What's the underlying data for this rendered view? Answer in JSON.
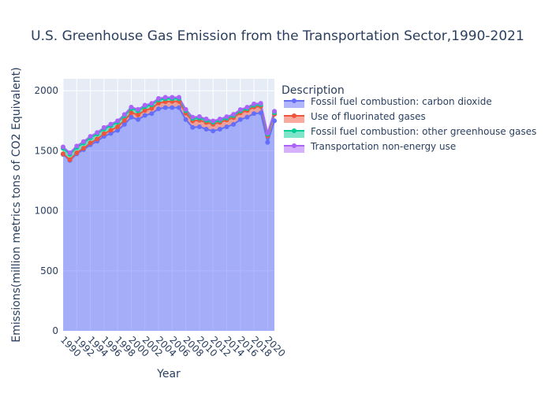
{
  "chart_data": {
    "type": "area",
    "title": "U.S. Greenhouse Gas Emission from the Transportation Sector,1990-2021",
    "xlabel": "Year",
    "ylabel": "Emissions(million metrics tons of CO2 Equivalent)",
    "ylim": [
      0,
      2100
    ],
    "xlim": [
      1990,
      2021
    ],
    "y_ticks": [
      0,
      500,
      1000,
      1500,
      2000
    ],
    "x_ticks": [
      1990,
      1992,
      1994,
      1996,
      1998,
      2000,
      2002,
      2004,
      2006,
      2008,
      2010,
      2012,
      2014,
      2016,
      2018,
      2020
    ],
    "grid": true,
    "stacked": true,
    "legend": {
      "title": "Description",
      "position": "right"
    },
    "x": [
      1990,
      1991,
      1992,
      1993,
      1994,
      1995,
      1996,
      1997,
      1998,
      1999,
      2000,
      2001,
      2002,
      2003,
      2004,
      2005,
      2006,
      2007,
      2008,
      2009,
      2010,
      2011,
      2012,
      2013,
      2014,
      2015,
      2016,
      2017,
      2018,
      2019,
      2020,
      2021
    ],
    "series": [
      {
        "name": "Fossil fuel combustion: carbon dioxide",
        "color": "#636efa",
        "values": [
          1470,
          1420,
          1475,
          1510,
          1550,
          1580,
          1620,
          1645,
          1670,
          1720,
          1780,
          1760,
          1795,
          1810,
          1850,
          1860,
          1860,
          1860,
          1760,
          1695,
          1700,
          1680,
          1665,
          1680,
          1700,
          1720,
          1760,
          1780,
          1810,
          1815,
          1570,
          1750
        ]
      },
      {
        "name": "Use of fluorinated gases",
        "color": "#ef553b",
        "values": [
          5,
          6,
          8,
          11,
          15,
          18,
          22,
          26,
          30,
          33,
          37,
          40,
          42,
          44,
          47,
          49,
          51,
          52,
          53,
          54,
          55,
          56,
          56,
          57,
          57,
          57,
          56,
          56,
          55,
          55,
          54,
          54
        ]
      },
      {
        "name": "Fossil fuel combustion: other greenhouse gases",
        "color": "#00cc96",
        "values": [
          45,
          45,
          45,
          44,
          43,
          42,
          40,
          39,
          38,
          37,
          35,
          33,
          31,
          29,
          27,
          25,
          23,
          22,
          20,
          19,
          18,
          17,
          16,
          16,
          15,
          15,
          15,
          15,
          14,
          14,
          13,
          13
        ]
      },
      {
        "name": "Transportation non-energy use",
        "color": "#ab63fa",
        "values": [
          12,
          12,
          12,
          12,
          12,
          12,
          12,
          12,
          12,
          12,
          12,
          12,
          12,
          12,
          12,
          12,
          12,
          12,
          12,
          12,
          12,
          12,
          12,
          12,
          12,
          12,
          12,
          12,
          12,
          12,
          11,
          12
        ]
      }
    ]
  }
}
